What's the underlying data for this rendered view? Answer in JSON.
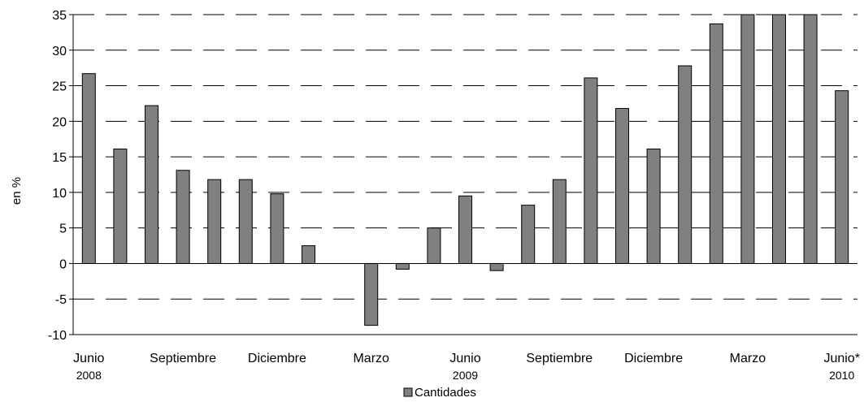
{
  "chart_data": {
    "type": "bar",
    "ylabel": "en %",
    "ylim": [
      -10,
      35
    ],
    "yticks": [
      -10,
      -5,
      0,
      5,
      10,
      15,
      20,
      25,
      30,
      35
    ],
    "grid": "dashed horizontal",
    "legend": "bottom-center",
    "bar_color": "#808080",
    "bar_border": "#000000",
    "series": [
      {
        "name": "Cantidades",
        "values": [
          26.7,
          16.1,
          22.2,
          13.1,
          11.8,
          11.8,
          9.8,
          2.5,
          0,
          -8.7,
          -0.8,
          5.0,
          9.5,
          -1.0,
          8.2,
          11.8,
          26.1,
          21.8,
          16.1,
          27.8,
          33.7,
          36,
          36,
          36,
          24.3
        ]
      }
    ],
    "x_tick_labels": [
      {
        "index": 0,
        "label": "Junio",
        "sub": "2008"
      },
      {
        "index": 3,
        "label": "Septiembre",
        "sub": ""
      },
      {
        "index": 6,
        "label": "Diciembre",
        "sub": ""
      },
      {
        "index": 9,
        "label": "Marzo",
        "sub": ""
      },
      {
        "index": 12,
        "label": "Junio",
        "sub": "2009"
      },
      {
        "index": 15,
        "label": "Septiembre",
        "sub": ""
      },
      {
        "index": 18,
        "label": "Diciembre",
        "sub": ""
      },
      {
        "index": 21,
        "label": "Marzo",
        "sub": ""
      },
      {
        "index": 24,
        "label": "Junio*",
        "sub": "2010"
      }
    ]
  }
}
